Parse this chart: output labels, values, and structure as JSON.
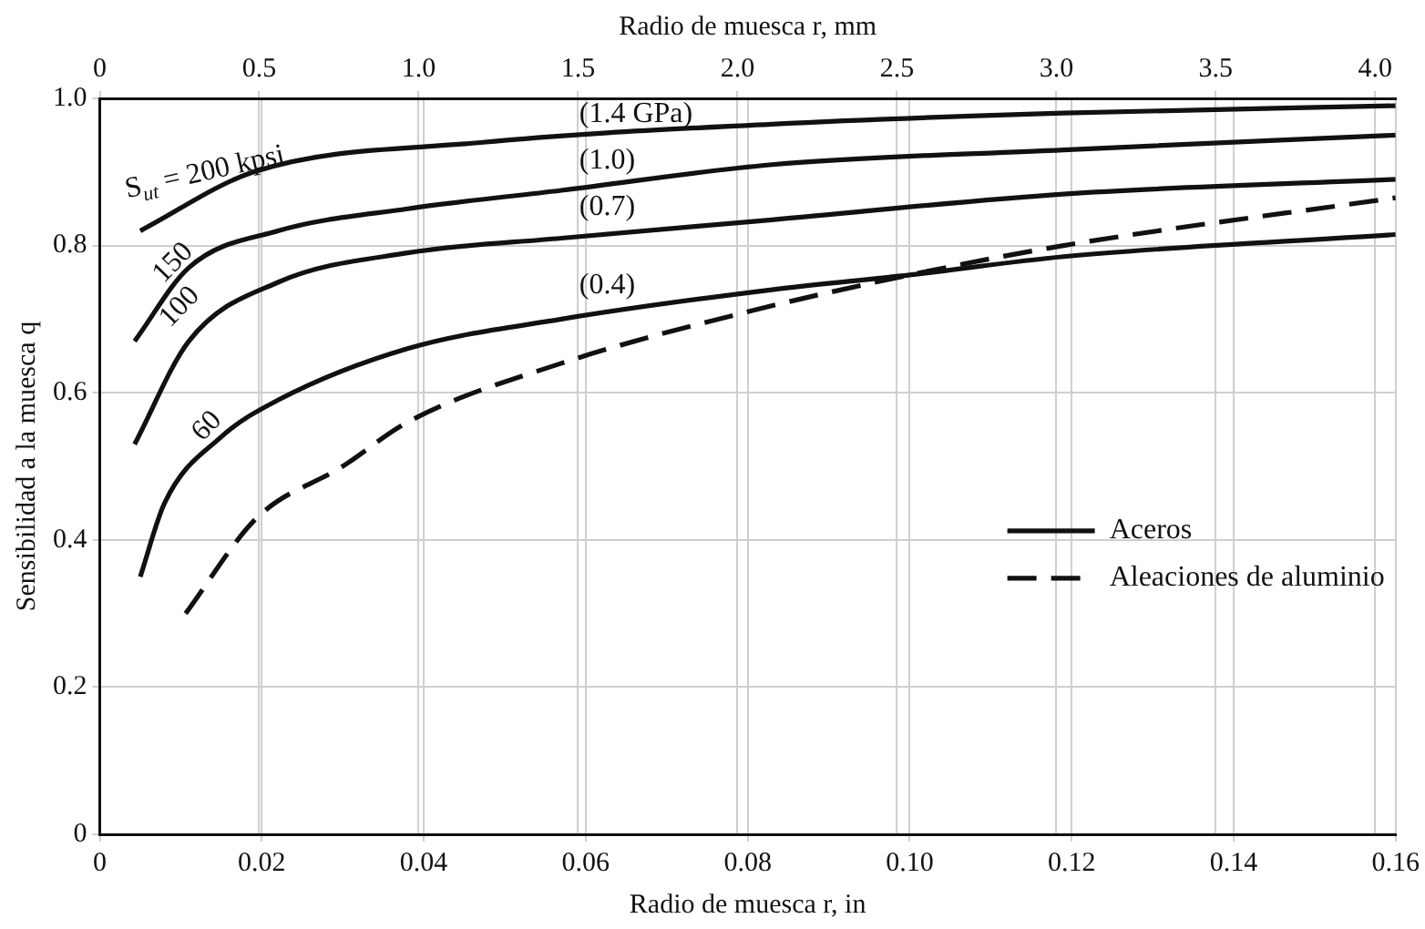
{
  "chart_data": {
    "type": "line",
    "xlabel": "Radio de muesca r, in",
    "x2label": "Radio de muesca r, mm",
    "ylabel": "Sensibilidad a la muesca q",
    "xlim": [
      0,
      0.16
    ],
    "xticks": [
      0,
      0.02,
      0.04,
      0.06,
      0.08,
      {
        "value": 0.1,
        "label": "0.10"
      },
      0.12,
      0.14,
      0.16
    ],
    "x2lim": [
      0,
      4.064
    ],
    "x2ticks": [
      0,
      0.5,
      {
        "value": 1,
        "label": "1.0"
      },
      1.5,
      {
        "value": 2,
        "label": "2.0"
      },
      2.5,
      {
        "value": 3,
        "label": "3.0"
      },
      3.5,
      {
        "value": 4,
        "label": "4.0"
      }
    ],
    "ylim": [
      0,
      1
    ],
    "yticks": [
      0,
      0.2,
      0.4,
      0.6,
      0.8,
      {
        "value": 1,
        "label": "1.0"
      }
    ],
    "grid": true,
    "legend": "right",
    "marker": "none",
    "series": [
      {
        "name": "Aceros",
        "color": "#111111",
        "line_style": "solid",
        "x": [
          0.005,
          0.019,
          0.047,
          0.083,
          0.119,
          0.16
        ],
        "values": [
          0.82,
          0.9,
          0.94,
          0.965,
          0.98,
          0.99
        ]
      },
      {
        "color": "#111111",
        "line_style": "solid",
        "x": [
          0.0043,
          0.011,
          0.022,
          0.038,
          0.057,
          0.083,
          0.119,
          0.16
        ],
        "values": [
          0.67,
          0.77,
          0.82,
          0.85,
          0.875,
          0.91,
          0.93,
          0.95
        ]
      },
      {
        "color": "#111111",
        "line_style": "solid",
        "x": [
          0.0043,
          0.011,
          0.022,
          0.038,
          0.057,
          0.083,
          0.119,
          0.16
        ],
        "values": [
          0.53,
          0.67,
          0.75,
          0.79,
          0.81,
          0.835,
          0.87,
          0.89
        ]
      },
      {
        "color": "#111111",
        "line_style": "solid",
        "x": [
          0.005,
          0.008,
          0.015,
          0.022,
          0.038,
          0.057,
          0.083,
          0.1,
          0.119,
          0.16
        ],
        "values": [
          0.35,
          0.45,
          0.54,
          0.59,
          0.66,
          0.7,
          0.74,
          0.76,
          0.785,
          0.815
        ]
      },
      {
        "name": "Aleaciones de aluminio",
        "color": "#111111",
        "line_style": "dashed",
        "x": [
          0.0106,
          0.0194,
          0.03,
          0.038,
          0.057,
          0.08,
          0.1,
          0.119,
          0.16
        ],
        "values": [
          0.3,
          0.43,
          0.5,
          0.56,
          0.64,
          0.71,
          0.76,
          0.8,
          0.865
        ]
      }
    ],
    "annotations": [
      "S$_{ut}$ = 200 kpsi",
      "(1.4 GPa)",
      "150",
      "(1.0)",
      "100",
      "(0.7)",
      "60",
      "(0.4)"
    ]
  }
}
